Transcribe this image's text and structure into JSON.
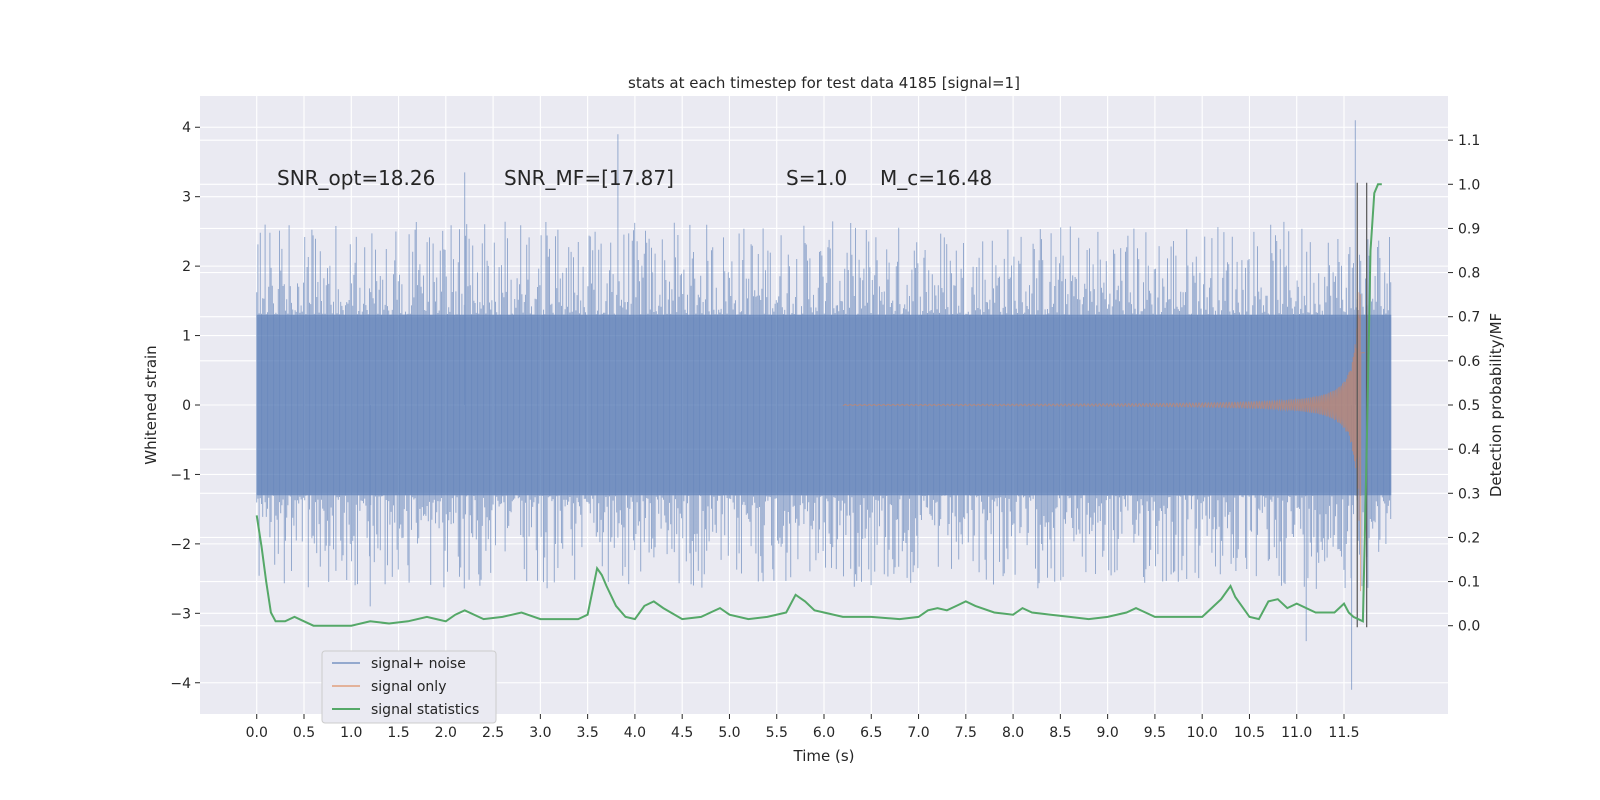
{
  "chart_data": {
    "type": "line",
    "title": "stats at each timestep for test data 4185 [signal=1]",
    "xlabel": "Time (s)",
    "ylabel": "Whitened strain",
    "y2label": "Detection probability/MF",
    "xlim": [
      -0.6,
      12.6
    ],
    "ylim": [
      -4.45,
      4.45
    ],
    "y2lim": [
      -0.2,
      1.2
    ],
    "x_ticks": [
      0.0,
      0.5,
      1.0,
      1.5,
      2.0,
      2.5,
      3.0,
      3.5,
      4.0,
      4.5,
      5.0,
      5.5,
      6.0,
      6.5,
      7.0,
      7.5,
      8.0,
      8.5,
      9.0,
      9.5,
      10.0,
      10.5,
      11.0,
      11.5
    ],
    "x_tick_labels": [
      "0.0",
      "0.5",
      "1.0",
      "1.5",
      "2.0",
      "2.5",
      "3.0",
      "3.5",
      "4.0",
      "4.5",
      "5.0",
      "5.5",
      "6.0",
      "6.5",
      "7.0",
      "7.5",
      "8.0",
      "8.5",
      "9.0",
      "9.5",
      "10.0",
      "10.5",
      "11.0",
      "11.5"
    ],
    "y_ticks": [
      -4,
      -3,
      -2,
      -1,
      0,
      1,
      2,
      3,
      4
    ],
    "y_tick_labels": [
      "−4",
      "−3",
      "−2",
      "−1",
      "0",
      "1",
      "2",
      "3",
      "4"
    ],
    "y2_ticks": [
      0.0,
      0.1,
      0.2,
      0.3,
      0.4,
      0.5,
      0.6,
      0.7,
      0.8,
      0.9,
      1.0,
      1.1
    ],
    "y2_tick_labels": [
      "0.0",
      "0.1",
      "0.2",
      "0.3",
      "0.4",
      "0.5",
      "0.6",
      "0.7",
      "0.8",
      "0.9",
      "1.0",
      "1.1"
    ],
    "grid": true,
    "legend_position": "lower-left",
    "annotations": [
      {
        "text": "SNR_opt=18.26",
        "x": 0.2,
        "y": 3.2
      },
      {
        "text": "SNR_MF=[17.87]",
        "x": 2.6,
        "y": 3.2
      },
      {
        "text": "S=1.0",
        "x": 5.6,
        "y": 3.2
      },
      {
        "text": "M_c=16.48",
        "x": 6.6,
        "y": 3.2
      }
    ],
    "series": [
      {
        "name": "signal+ noise",
        "color": "#4c72b0",
        "axis": "left",
        "kind": "noise-band",
        "x_start": 0.0,
        "x_end": 12.0,
        "core_amplitude": 1.3,
        "peaks": [
          [
            3.82,
            3.9
          ],
          [
            11.62,
            4.1
          ],
          [
            11.58,
            -4.1
          ],
          [
            11.1,
            -3.4
          ],
          [
            2.2,
            3.35
          ],
          [
            1.2,
            -2.9
          ]
        ]
      },
      {
        "name": "signal only",
        "color": "#dd8452",
        "axis": "left",
        "kind": "chirp",
        "x_start": 6.2,
        "x_end": 11.72,
        "peak_amplitude": 3.2,
        "peak_time": 11.68
      },
      {
        "name": "signal statistics",
        "color": "#55a868",
        "axis": "right",
        "kind": "line",
        "x": [
          0.0,
          0.05,
          0.1,
          0.15,
          0.2,
          0.3,
          0.4,
          0.5,
          0.6,
          0.8,
          1.0,
          1.2,
          1.4,
          1.6,
          1.8,
          1.9,
          2.0,
          2.1,
          2.2,
          2.4,
          2.6,
          2.8,
          3.0,
          3.2,
          3.4,
          3.5,
          3.6,
          3.65,
          3.7,
          3.8,
          3.9,
          4.0,
          4.1,
          4.2,
          4.3,
          4.5,
          4.7,
          4.8,
          4.9,
          5.0,
          5.2,
          5.4,
          5.6,
          5.7,
          5.8,
          5.9,
          6.0,
          6.2,
          6.5,
          6.8,
          7.0,
          7.1,
          7.2,
          7.3,
          7.4,
          7.5,
          7.6,
          7.8,
          8.0,
          8.1,
          8.2,
          8.4,
          8.6,
          8.8,
          9.0,
          9.2,
          9.3,
          9.4,
          9.5,
          9.6,
          9.8,
          10.0,
          10.1,
          10.2,
          10.3,
          10.35,
          10.4,
          10.5,
          10.6,
          10.7,
          10.8,
          10.9,
          11.0,
          11.2,
          11.4,
          11.5,
          11.55,
          11.6,
          11.7,
          11.72,
          11.75,
          11.78,
          11.82,
          11.86,
          11.9
        ],
        "y": [
          0.25,
          0.18,
          0.1,
          0.03,
          0.01,
          0.01,
          0.02,
          0.01,
          0.0,
          0.0,
          0.0,
          0.01,
          0.005,
          0.01,
          0.02,
          0.015,
          0.01,
          0.025,
          0.035,
          0.015,
          0.02,
          0.03,
          0.015,
          0.015,
          0.015,
          0.025,
          0.13,
          0.115,
          0.09,
          0.045,
          0.02,
          0.015,
          0.045,
          0.055,
          0.04,
          0.015,
          0.02,
          0.03,
          0.04,
          0.025,
          0.015,
          0.02,
          0.03,
          0.07,
          0.055,
          0.035,
          0.03,
          0.02,
          0.02,
          0.015,
          0.02,
          0.035,
          0.04,
          0.035,
          0.045,
          0.055,
          0.045,
          0.03,
          0.025,
          0.04,
          0.03,
          0.025,
          0.02,
          0.015,
          0.02,
          0.03,
          0.04,
          0.03,
          0.02,
          0.02,
          0.02,
          0.02,
          0.04,
          0.06,
          0.09,
          0.065,
          0.05,
          0.02,
          0.015,
          0.055,
          0.06,
          0.04,
          0.05,
          0.03,
          0.03,
          0.05,
          0.03,
          0.02,
          0.01,
          0.2,
          0.5,
          0.85,
          0.98,
          1.0,
          1.0
        ]
      }
    ]
  }
}
